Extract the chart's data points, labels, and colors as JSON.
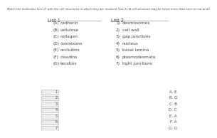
{
  "title": "Match the molecules (List 2) with the cell structures in which they are involved (List 1). A cell structure may be listed more than once or not at all.",
  "list1_header": "List 1",
  "list2_header": "List 2",
  "list1_items": [
    [
      "(A)",
      "cadherin"
    ],
    [
      "(B)",
      "cellulose"
    ],
    [
      "(C)",
      "collagen"
    ],
    [
      "(D)",
      "connexons"
    ],
    [
      "(E)",
      "occludins"
    ],
    [
      "(F)",
      "claudins"
    ],
    [
      "(G)",
      "keratins"
    ]
  ],
  "list2_items": [
    [
      "1)",
      "desmosomes"
    ],
    [
      "2)",
      "cell wall"
    ],
    [
      "3)",
      "gap junctions"
    ],
    [
      "4)",
      "nucleus"
    ],
    [
      "5)",
      "basal lamina"
    ],
    [
      "6)",
      "plasmodesmata"
    ],
    [
      "7)",
      "tight junctions"
    ]
  ],
  "answer_labels": [
    "A. E",
    "B. G",
    "C. B",
    "D. C",
    "E. A",
    "F. A",
    "G. G"
  ],
  "row_labels": [
    "1",
    "2",
    "3",
    "4",
    "5",
    "6",
    "7"
  ],
  "bg_color": "#ffffff",
  "text_color": "#444444",
  "title_fontsize": 2.8,
  "header_fontsize": 4.8,
  "item_fontsize": 4.2,
  "answer_fontsize": 4.0,
  "line_color": "#999999",
  "box_edge_color": "#aaaaaa",
  "box_face_color": "#eeeeee",
  "dash_color": "#aaaaaa"
}
